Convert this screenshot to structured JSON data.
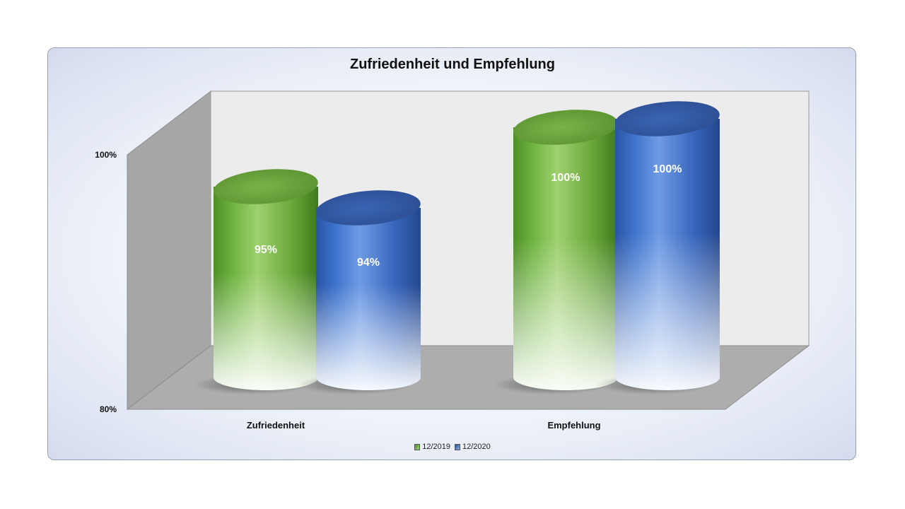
{
  "chart_data": {
    "type": "bar",
    "title": "Zufriedenheit und Empfehlung",
    "categories": [
      "Zufriedenheit",
      "Empfehlung"
    ],
    "series": [
      {
        "name": "12/2019",
        "values": [
          95,
          100
        ],
        "labels": [
          "95%",
          "100%"
        ],
        "color": "#6aad3c"
      },
      {
        "name": "12/2020",
        "values": [
          94,
          100
        ],
        "labels": [
          "94%",
          "100%"
        ],
        "color": "#3a6fc4"
      }
    ],
    "ylim": [
      80,
      100
    ],
    "y_ticks": [
      {
        "value": 80,
        "label": "80%"
      },
      {
        "value": 100,
        "label": "100%"
      }
    ],
    "xlabel": "",
    "ylabel": "",
    "legend_position": "bottom",
    "grid": false,
    "shape": "3d-cylinder"
  }
}
